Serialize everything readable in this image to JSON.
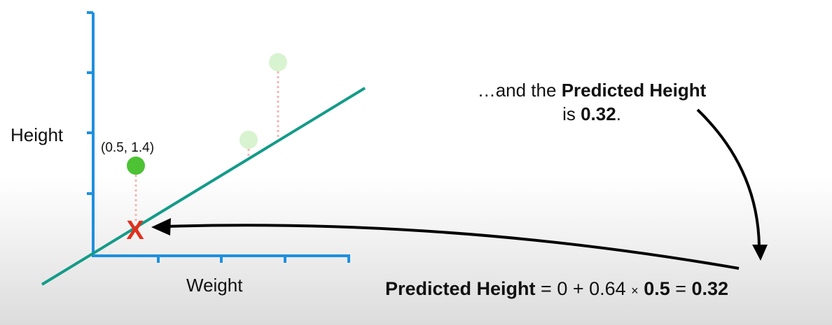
{
  "axes": {
    "y_label": "Height",
    "x_label": "Weight"
  },
  "point_label": "(0.5, 1.4)",
  "narration": {
    "line1_prefix": "…and the ",
    "line1_bold": "Predicted Height",
    "line2_prefix": "is ",
    "line2_bold": "0.32",
    "line2_suffix": "."
  },
  "equation": {
    "lhs_bold": "Predicted Height",
    "op1": " = 0 + 0.64 ",
    "times": "×",
    "weight_bold": "0.5",
    "op2": " = ",
    "result_bold": "0.32"
  },
  "marker": "X",
  "colors": {
    "axis": "#1e90e0",
    "fit_line": "#139b89",
    "point_active": "#4cc234",
    "point_faded": "#d8f3cf",
    "residual": "#f2b6b6",
    "marker": "#e0301e",
    "arrow": "#000000"
  }
}
